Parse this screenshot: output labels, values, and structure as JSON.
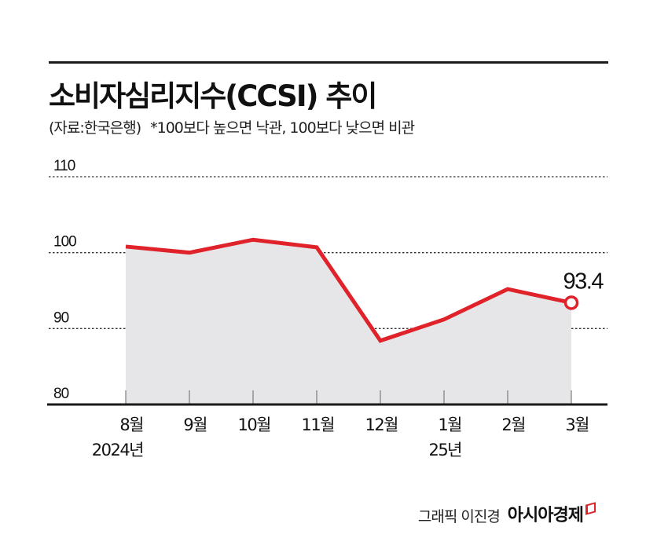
{
  "header": {
    "title": "소비자심리지수(CCSI) 추이",
    "source": "(자료:한국은행)",
    "note": "*100보다 높으면 낙관, 100보다 낮으면 비관"
  },
  "footer": {
    "author": "그래픽 이진경",
    "brand": "아시아경제"
  },
  "colors": {
    "line": "#e0232a",
    "area": "#e6e6e8",
    "axis": "#1a1a1a",
    "grid": "#333333"
  },
  "chart_data": {
    "type": "area",
    "title": "소비자심리지수(CCSI) 추이",
    "subtitle": "(자료:한국은행) *100보다 높으면 낙관, 100보다 낮으면 비관",
    "categories": [
      "8월",
      "9월",
      "10월",
      "11월",
      "12월",
      "1월",
      "2월",
      "3월"
    ],
    "year_labels": [
      {
        "index": 0,
        "label": "2024년"
      },
      {
        "index": 5,
        "label": "25년"
      }
    ],
    "series": [
      {
        "name": "소비자심리지수(CCSI)",
        "values": [
          100.8,
          100.0,
          101.7,
          100.7,
          88.4,
          91.2,
          95.2,
          93.4
        ]
      }
    ],
    "annotations": [
      {
        "index": 7,
        "label": "93.4"
      }
    ],
    "yticks": [
      80,
      90,
      100,
      110
    ],
    "ylim": [
      80,
      110
    ],
    "xlabel": "",
    "ylabel": "",
    "grid": "dotted horizontal",
    "legend": "none"
  }
}
